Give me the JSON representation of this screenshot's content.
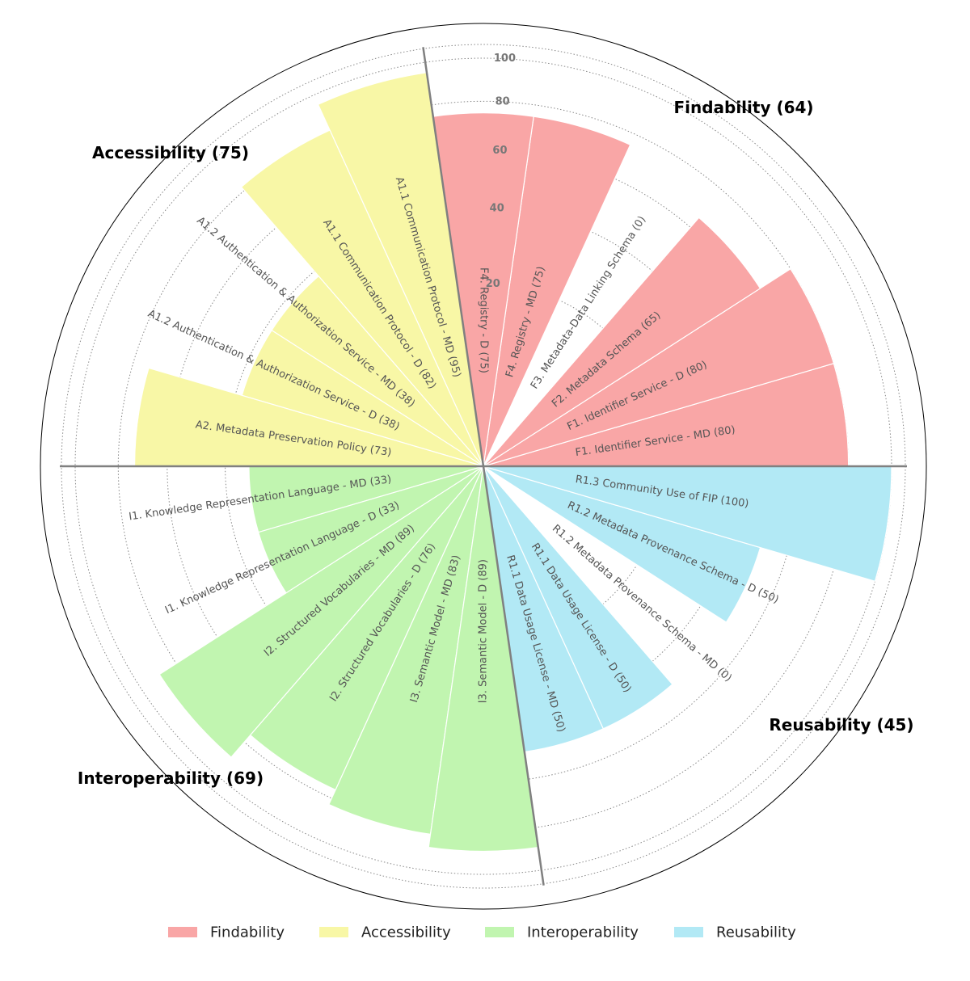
{
  "chart_data": {
    "type": "polar-bar",
    "title": "",
    "radial_ticks": [
      20,
      40,
      60,
      80,
      100
    ],
    "rlim": [
      0,
      100
    ],
    "grid": true,
    "legend_position": "bottom",
    "categories": [
      {
        "name": "Findability",
        "score": 64,
        "label": "Findability (64)",
        "color": "#f9a6a6"
      },
      {
        "name": "Accessibility",
        "score": 75,
        "label": "Accessibility (75)",
        "color": "#f8f7a6"
      },
      {
        "name": "Interoperability",
        "score": 69,
        "label": "Interoperability (69)",
        "color": "#c1f5b0"
      },
      {
        "name": "Reusability",
        "score": 45,
        "label": "Reusability (45)",
        "color": "#b2e9f5"
      }
    ],
    "bars": [
      {
        "category": 0,
        "label": "F1. Identifier Service - MD (80)",
        "value": 80
      },
      {
        "category": 0,
        "label": "F1. Identifier Service - D (80)",
        "value": 80
      },
      {
        "category": 0,
        "label": "F2. Metadata Schema (65)",
        "value": 65
      },
      {
        "category": 0,
        "label": "F3. Metadata-Data Linking Schema (0)",
        "value": 0
      },
      {
        "category": 0,
        "label": "F4. Registry - MD (75)",
        "value": 75
      },
      {
        "category": 0,
        "label": "F4. Registry - D (75)",
        "value": 75
      },
      {
        "category": 1,
        "label": "A1.1 Communication Protocol - MD (95)",
        "value": 95
      },
      {
        "category": 1,
        "label": "A1.1 Communication Protocol - D (82)",
        "value": 82
      },
      {
        "category": 1,
        "label": "A1.2 Authentication & Authorization Service - MD (38)",
        "value": 38
      },
      {
        "category": 1,
        "label": "A1.2 Authentication & Authorization Service - D (38)",
        "value": 38
      },
      {
        "category": 1,
        "label": "A2. Metadata Preservation Policy (73)",
        "value": 73
      },
      {
        "category": 2,
        "label": "I1. Knowledge Representation Language - MD (33)",
        "value": 33
      },
      {
        "category": 2,
        "label": "I1. Knowledge Representation Language - D (33)",
        "value": 33
      },
      {
        "category": 2,
        "label": "I2. Structured Vocabularies - MD (89)",
        "value": 89
      },
      {
        "category": 2,
        "label": "I2. Structured Vocabularies - D (76)",
        "value": 76
      },
      {
        "category": 2,
        "label": "I3. Semantic Model - MD (83)",
        "value": 83
      },
      {
        "category": 2,
        "label": "I3. Semantic Model - D (89)",
        "value": 89
      },
      {
        "category": 3,
        "label": "R1.1 Data Usage License - MD (50)",
        "value": 50
      },
      {
        "category": 3,
        "label": "R1.1 Data Usage License - D (50)",
        "value": 50
      },
      {
        "category": 3,
        "label": "R1.2 Metadata Provenance Schema - MD (0)",
        "value": 0
      },
      {
        "category": 3,
        "label": "R1.2 Metadata Provenance Schema - D (50)",
        "value": 50
      },
      {
        "category": 3,
        "label": "R1.3 Community Use of FIP (100)",
        "value": 100
      }
    ]
  }
}
